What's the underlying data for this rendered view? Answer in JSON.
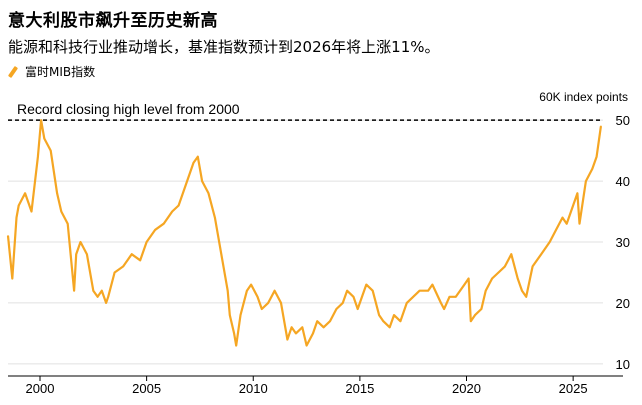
{
  "header": {
    "title": "意大利股市飙升至历史新高",
    "subtitle": "能源和科技行业推动增长，基准指数预计到2026年将上涨11%。"
  },
  "colors": {
    "series": "#f5a623",
    "grid": "#e0e0e0",
    "record_line": "#000000"
  },
  "chart_data": {
    "type": "line",
    "title": "意大利股市飙升至历史新高",
    "subtitle": "能源和科技行业推动增长，基准指数预计到2026年将上涨11%。",
    "ylabel": "60K index points",
    "ylim": [
      8,
      52
    ],
    "xlim": [
      1998.5,
      2026.4
    ],
    "grid": true,
    "legend": "top-left",
    "x_ticks": [
      "2000",
      "2005",
      "2010",
      "2015",
      "2020",
      "2025"
    ],
    "y_ticks": [
      "10",
      "20",
      "30",
      "40",
      "50"
    ],
    "annotation": {
      "label": "Record closing high level from 2000",
      "value": 50
    },
    "series": [
      {
        "name": "富时MIB指数",
        "x": [
          1998.5,
          1998.7,
          1998.9,
          1999.0,
          1999.3,
          1999.6,
          1999.9,
          2000.05,
          2000.2,
          2000.5,
          2000.8,
          2001.0,
          2001.3,
          2001.6,
          2001.7,
          2001.9,
          2002.2,
          2002.5,
          2002.7,
          2002.9,
          2003.1,
          2003.2,
          2003.5,
          2003.9,
          2004.3,
          2004.7,
          2005.0,
          2005.4,
          2005.8,
          2006.2,
          2006.5,
          2006.9,
          2007.2,
          2007.4,
          2007.6,
          2007.9,
          2008.2,
          2008.5,
          2008.8,
          2008.9,
          2009.1,
          2009.2,
          2009.4,
          2009.7,
          2009.9,
          2010.2,
          2010.4,
          2010.7,
          2011.0,
          2011.3,
          2011.6,
          2011.8,
          2012.0,
          2012.3,
          2012.5,
          2012.8,
          2013.0,
          2013.3,
          2013.6,
          2013.9,
          2014.2,
          2014.4,
          2014.7,
          2014.9,
          2015.1,
          2015.3,
          2015.6,
          2015.9,
          2016.1,
          2016.4,
          2016.6,
          2016.9,
          2017.2,
          2017.5,
          2017.8,
          2018.2,
          2018.4,
          2018.8,
          2018.95,
          2019.2,
          2019.5,
          2019.9,
          2020.1,
          2020.2,
          2020.4,
          2020.7,
          2020.9,
          2021.2,
          2021.5,
          2021.8,
          2022.1,
          2022.4,
          2022.6,
          2022.8,
          2023.1,
          2023.5,
          2023.9,
          2024.2,
          2024.5,
          2024.7,
          2024.9,
          2025.2,
          2025.3,
          2025.6,
          2025.9,
          2026.1,
          2026.3
        ],
        "values": [
          31,
          24,
          34,
          36,
          38,
          35,
          44,
          50,
          47,
          45,
          38,
          35,
          33,
          22,
          28,
          30,
          28,
          22,
          21,
          22,
          20,
          21,
          25,
          26,
          28,
          27,
          30,
          32,
          33,
          35,
          36,
          40,
          43,
          44,
          40,
          38,
          34,
          28,
          22,
          18,
          15,
          13,
          18,
          22,
          23,
          21,
          19,
          20,
          22,
          20,
          14,
          16,
          15,
          16,
          13,
          15,
          17,
          16,
          17,
          19,
          20,
          22,
          21,
          19,
          21,
          23,
          22,
          18,
          17,
          16,
          18,
          17,
          20,
          21,
          22,
          22,
          23,
          20,
          19,
          21,
          21,
          23,
          24,
          17,
          18,
          19,
          22,
          24,
          25,
          26,
          28,
          24,
          22,
          21,
          26,
          28,
          30,
          32,
          34,
          33,
          35,
          38,
          33,
          40,
          42,
          44,
          49
        ]
      }
    ]
  }
}
